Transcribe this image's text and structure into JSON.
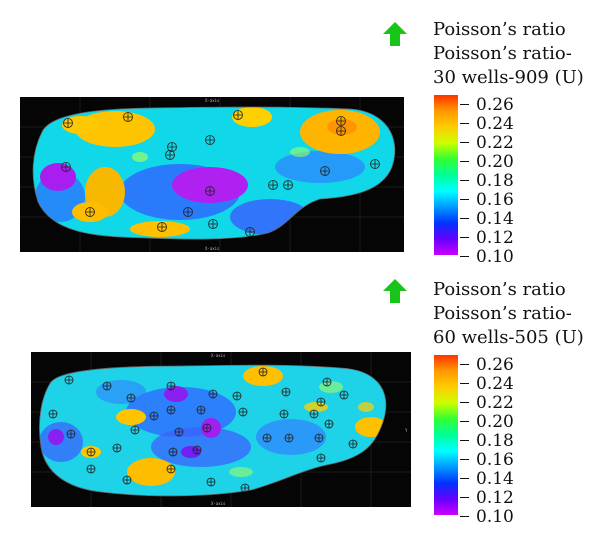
{
  "panels": [
    {
      "id": "top",
      "arrow_color": "#19c419",
      "legend_lines": [
        "Poisson’s ratio",
        "Poisson’s ratio-",
        "30 wells-909 (U)"
      ],
      "ticks": [
        "0.26",
        "0.24",
        "0.22",
        "0.20",
        "0.18",
        "0.16",
        "0.14",
        "0.12",
        "0.10"
      ],
      "axis_top": "X-axis",
      "axis_bottom": "X-axis"
    },
    {
      "id": "bottom",
      "arrow_color": "#19c419",
      "legend_lines": [
        "Poisson’s ratio",
        "Poisson’s ratio-",
        "60 wells-505 (U)"
      ],
      "ticks": [
        "0.26",
        "0.24",
        "0.22",
        "0.20",
        "0.18",
        "0.16",
        "0.14",
        "0.12",
        "0.10"
      ],
      "axis_top": "X-axis",
      "axis_bottom": "X-axis",
      "axis_right": "Y"
    }
  ],
  "colorscale": [
    "#ff3300",
    "#ff9900",
    "#ffcc00",
    "#ccff00",
    "#33ff33",
    "#00ff99",
    "#00ffff",
    "#0099ff",
    "#0033ff",
    "#6600ff",
    "#cc00ff"
  ]
}
